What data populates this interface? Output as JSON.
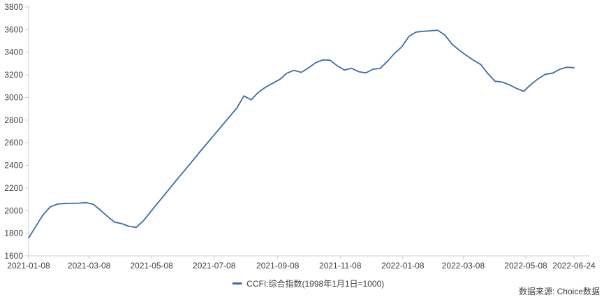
{
  "page": {
    "background": "#ffffff"
  },
  "legend": {
    "label": "CCFI:综合指数(1998年1月1日=1000)"
  },
  "source": {
    "label": "数据来源: Choice数据"
  },
  "colors": {
    "line": "#3A6CA8",
    "axis": "#CCCCCC",
    "label": "#404040",
    "legend_text": "#3F3F3F"
  },
  "chart_data": {
    "type": "line",
    "title": "",
    "xlabel": "",
    "ylabel": "",
    "series_name": "CCFI:综合指数(1998年1月1日=1000)",
    "grid": false,
    "legend_position": "bottom-center",
    "ylim": [
      1600,
      3800
    ],
    "ytick_step": 200,
    "y_tick_labels": [
      "1600",
      "1800",
      "2000",
      "2200",
      "2400",
      "2600",
      "2800",
      "3000",
      "3200",
      "3400",
      "3600",
      "3800"
    ],
    "x_tick_labels": [
      "2021-01-08",
      "2021-03-08",
      "2021-05-08",
      "2021-07-08",
      "2021-09-08",
      "2021-11-08",
      "2022-01-08",
      "2022-03-08",
      "2022-05-08",
      "2022-06-24"
    ],
    "x": [
      "2021-01-08",
      "2021-01-15",
      "2021-01-22",
      "2021-01-29",
      "2021-02-05",
      "2021-02-12",
      "2021-02-19",
      "2021-02-26",
      "2021-03-05",
      "2021-03-12",
      "2021-03-19",
      "2021-03-26",
      "2021-04-02",
      "2021-04-09",
      "2021-04-16",
      "2021-04-23",
      "2021-04-30",
      "2021-05-07",
      "2021-05-14",
      "2021-05-21",
      "2021-05-28",
      "2021-06-04",
      "2021-06-11",
      "2021-06-18",
      "2021-06-25",
      "2021-07-02",
      "2021-07-09",
      "2021-07-16",
      "2021-07-23",
      "2021-07-30",
      "2021-08-06",
      "2021-08-13",
      "2021-08-20",
      "2021-08-27",
      "2021-09-03",
      "2021-09-10",
      "2021-09-17",
      "2021-09-24",
      "2021-10-01",
      "2021-10-08",
      "2021-10-15",
      "2021-10-22",
      "2021-10-29",
      "2021-11-05",
      "2021-11-12",
      "2021-11-19",
      "2021-11-26",
      "2021-12-03",
      "2021-12-10",
      "2021-12-17",
      "2021-12-24",
      "2021-12-31",
      "2022-01-07",
      "2022-01-14",
      "2022-01-21",
      "2022-01-28",
      "2022-02-04",
      "2022-02-11",
      "2022-02-18",
      "2022-02-25",
      "2022-03-04",
      "2022-03-11",
      "2022-03-18",
      "2022-03-25",
      "2022-04-01",
      "2022-04-08",
      "2022-04-15",
      "2022-04-22",
      "2022-04-29",
      "2022-05-06",
      "2022-05-13",
      "2022-05-20",
      "2022-05-27",
      "2022-06-03",
      "2022-06-10",
      "2022-06-17",
      "2022-06-24"
    ],
    "values": [
      1759,
      1861,
      1963,
      2032,
      2058,
      2062,
      2064,
      2066,
      2071,
      2056,
      2005,
      1948,
      1898,
      1884,
      1860,
      1852,
      1910,
      1990,
      2068,
      2145,
      2222,
      2300,
      2375,
      2452,
      2530,
      2605,
      2680,
      2755,
      2830,
      2905,
      3014,
      2979,
      3045,
      3090,
      3125,
      3160,
      3215,
      3240,
      3222,
      3262,
      3308,
      3332,
      3330,
      3280,
      3243,
      3258,
      3228,
      3218,
      3250,
      3257,
      3320,
      3390,
      3448,
      3540,
      3578,
      3585,
      3590,
      3595,
      3552,
      3472,
      3419,
      3372,
      3330,
      3292,
      3211,
      3144,
      3136,
      3112,
      3080,
      3055,
      3115,
      3165,
      3205,
      3215,
      3248,
      3268,
      3263
    ]
  }
}
